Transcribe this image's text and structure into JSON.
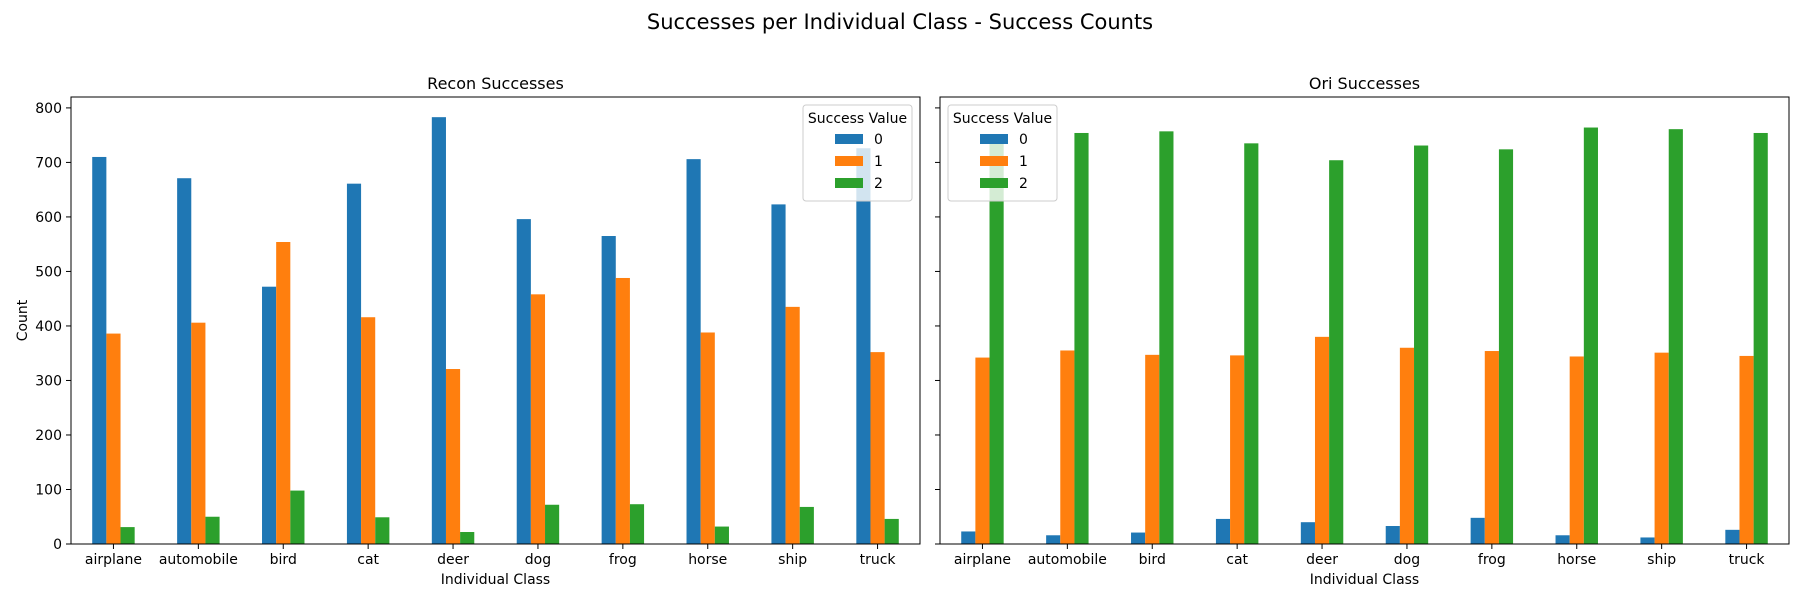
{
  "figure": {
    "title": "Successes per Individual Class - Success Counts"
  },
  "colors": {
    "series_0": "#1f77b4",
    "series_1": "#ff7f0e",
    "series_2": "#2ca02c"
  },
  "chart_data": [
    {
      "type": "bar",
      "title": "Recon Successes",
      "xlabel": "Individual Class",
      "ylabel": "Count",
      "ylim": [
        0,
        820
      ],
      "yticks": [
        0,
        100,
        200,
        300,
        400,
        500,
        600,
        700,
        800
      ],
      "categories": [
        "airplane",
        "automobile",
        "bird",
        "cat",
        "deer",
        "dog",
        "frog",
        "horse",
        "ship",
        "truck"
      ],
      "legend": {
        "title": "Success Value",
        "placement": "upper right"
      },
      "series": [
        {
          "name": "0",
          "values": [
            710,
            671,
            472,
            661,
            783,
            596,
            565,
            706,
            623,
            726
          ]
        },
        {
          "name": "1",
          "values": [
            386,
            406,
            554,
            416,
            321,
            458,
            488,
            388,
            435,
            352
          ]
        },
        {
          "name": "2",
          "values": [
            31,
            50,
            98,
            49,
            22,
            72,
            73,
            32,
            68,
            46
          ]
        }
      ]
    },
    {
      "type": "bar",
      "title": "Ori Successes",
      "xlabel": "Individual Class",
      "ylabel": "",
      "ylim": [
        0,
        820
      ],
      "yticks": [
        0,
        100,
        200,
        300,
        400,
        500,
        600,
        700,
        800
      ],
      "show_ytick_labels": false,
      "categories": [
        "airplane",
        "automobile",
        "bird",
        "cat",
        "deer",
        "dog",
        "frog",
        "horse",
        "ship",
        "truck"
      ],
      "legend": {
        "title": "Success Value",
        "placement": "upper left"
      },
      "series": [
        {
          "name": "0",
          "values": [
            23,
            16,
            21,
            46,
            40,
            33,
            48,
            16,
            12,
            26
          ]
        },
        {
          "name": "1",
          "values": [
            342,
            355,
            347,
            346,
            380,
            360,
            354,
            344,
            351,
            345
          ]
        },
        {
          "name": "2",
          "values": [
            745,
            754,
            757,
            735,
            704,
            731,
            724,
            764,
            761,
            754
          ]
        }
      ]
    }
  ]
}
